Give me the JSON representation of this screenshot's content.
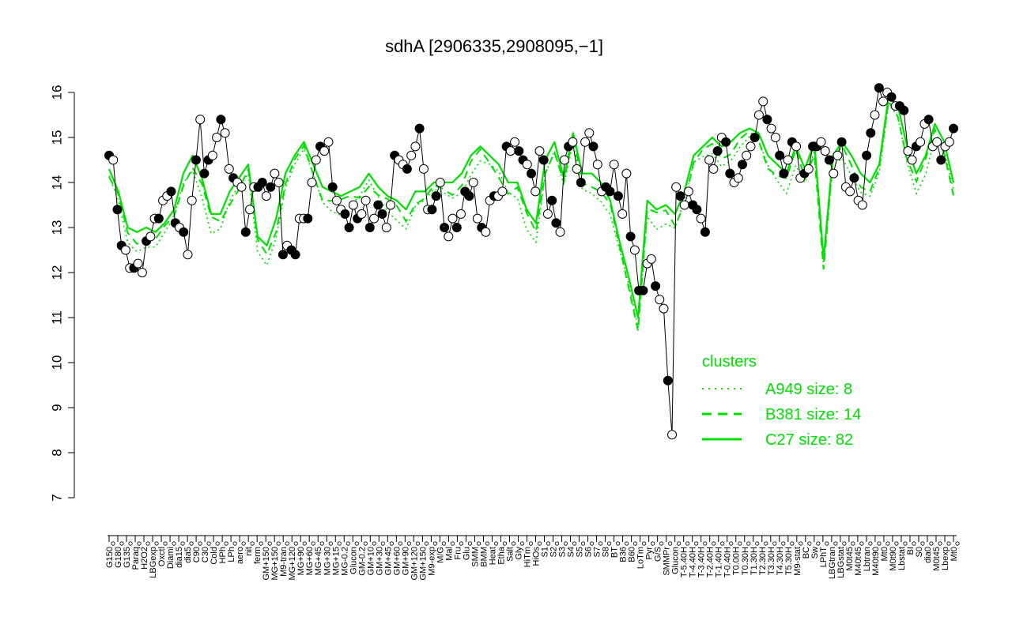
{
  "chart_data": {
    "type": "line",
    "title": "sdhA [2906335,2908095,−1]",
    "xlabel": "",
    "ylabel": "",
    "ylim": [
      7,
      16
    ],
    "yticks": [
      7,
      8,
      9,
      10,
      11,
      12,
      13,
      14,
      15,
      16
    ],
    "grid": false,
    "legend_position": "right",
    "legend": {
      "title": "clusters",
      "entries": [
        {
          "label": "A949 size: 8",
          "style": "dotted",
          "color": "#00e000"
        },
        {
          "label": "B381 size: 14",
          "style": "dashed",
          "color": "#00e000"
        },
        {
          "label": "C27 size: 82",
          "style": "solid",
          "color": "#00e000"
        }
      ]
    },
    "series_colors": {
      "cluster": "#00e000",
      "points": "#000000"
    },
    "x_tick_labels": [
      "G150",
      "G180",
      "G135",
      "Paraq",
      "H2O2",
      "LBGexp",
      "Oxctl",
      "Diami",
      "dia15",
      "dia5",
      "C90",
      "C30",
      "Cold",
      "HPh",
      "LPh",
      "aero",
      "nit",
      "ferm",
      "GM+150",
      "MG+150",
      "M9-tran",
      "MG+120",
      "MG+90",
      "MG+60",
      "MG+45",
      "MG+30",
      "MG+15",
      "MG-0.2",
      "Glucon",
      "GM-0.2",
      "GM+10",
      "GM+30",
      "GM+45",
      "GM+60",
      "GM+90",
      "GM+120",
      "GM+150",
      "M9-exp",
      "M/G",
      "Mal",
      "Fru",
      "Glu",
      "SMM",
      "BMM",
      "Heat",
      "Etha",
      "Salt",
      "Gly",
      "HiTm",
      "HiOs",
      "S1",
      "S2",
      "S3",
      "S4",
      "S5",
      "S6",
      "S7",
      "S8",
      "BT",
      "B36",
      "B60",
      "LoTm",
      "Pyr",
      "G/S",
      "SMMPr",
      "Glucon",
      "T-5.40H",
      "T-4.40H",
      "T-3.40H",
      "T-2.40H",
      "T-1.40H",
      "T-0.40H",
      "T0.00H",
      "T0.30H",
      "T1.30H",
      "T2.30H",
      "T3.30H",
      "T4.30H",
      "T5.30H",
      "M9-stat",
      "BC",
      "Sw",
      "LPhT",
      "LBGtran",
      "LBGstat",
      "M0t45",
      "M40t45",
      "Lbtran",
      "M40t90",
      "Mt0",
      "M0t90",
      "Lbstat",
      "BI",
      "S0",
      "dia0",
      "M0t45",
      "Lbexp",
      "Mt0"
    ],
    "point_values": [
      14.6,
      14.5,
      13.4,
      12.6,
      12.5,
      12.1,
      12.1,
      12.2,
      12.0,
      12.7,
      12.8,
      13.2,
      13.2,
      13.6,
      13.7,
      13.8,
      13.1,
      13.0,
      12.9,
      12.4,
      13.6,
      14.5,
      15.4,
      14.2,
      14.5,
      14.6,
      15.0,
      15.4,
      15.1,
      14.3,
      14.1,
      14.0,
      13.9,
      12.9,
      13.4,
      13.9,
      13.9,
      14.0,
      13.7,
      13.9,
      14.2,
      14.0,
      12.4,
      12.6,
      12.5,
      12.4,
      13.2,
      13.2,
      13.2,
      14.0,
      14.5,
      14.8,
      14.7,
      14.9,
      13.9,
      13.6,
      13.4,
      13.3,
      13.0,
      13.5,
      13.2,
      13.3,
      13.6,
      13.0,
      13.2,
      13.5,
      13.3,
      13.0,
      13.5,
      14.6,
      14.5,
      14.4,
      14.3,
      14.6,
      14.8,
      15.2,
      14.3,
      13.4,
      13.4,
      13.7,
      14.0,
      13.0,
      12.8,
      13.2,
      13.0,
      13.3,
      13.8,
      13.7,
      14.0,
      13.2,
      13.0,
      12.9,
      13.6,
      13.7,
      13.7,
      13.8,
      14.8,
      14.7,
      14.9,
      14.7,
      14.5,
      14.4,
      14.2,
      13.8,
      14.7,
      14.5,
      13.3,
      13.6,
      13.1,
      12.9,
      14.5,
      14.8,
      14.9,
      14.3,
      14.0,
      14.9,
      15.1,
      14.8,
      14.4,
      13.8,
      13.9,
      13.8,
      14.4,
      13.7,
      13.3,
      14.2,
      12.8,
      12.5,
      11.6,
      11.6,
      12.2,
      12.3,
      11.7,
      11.4,
      11.2,
      9.6,
      8.4,
      13.9,
      13.7,
      13.5,
      13.8,
      13.5,
      13.4,
      13.2,
      12.9,
      14.5,
      14.3,
      14.7,
      15.0,
      14.9,
      14.2,
      14.0,
      14.1,
      14.4,
      14.6,
      14.8,
      15.0,
      15.5,
      15.8,
      15.4,
      15.2,
      15.0,
      14.6,
      14.2,
      14.5,
      14.9,
      14.8,
      14.1,
      14.2,
      14.3,
      14.8,
      14.8,
      14.9,
      14.7,
      14.5,
      14.2,
      14.6,
      14.9,
      13.9,
      13.8,
      14.1,
      13.6,
      13.5,
      14.6,
      15.1,
      15.5,
      16.1,
      15.8,
      16.0,
      15.9,
      15.7,
      15.7,
      15.6,
      14.7,
      14.5,
      14.8,
      14.9,
      15.3,
      15.4,
      14.8,
      14.9,
      14.5,
      14.8,
      14.9,
      15.2
    ],
    "c27_values": [
      14.3,
      13.8,
      13.0,
      12.9,
      13.0,
      12.9,
      13.1,
      13.4,
      14.2,
      14.6,
      14.1,
      13.3,
      13.3,
      13.8,
      14.1,
      14.4,
      12.8,
      12.6,
      13.2,
      14.2,
      14.6,
      14.9,
      14.4,
      13.9,
      13.8,
      13.7,
      13.8,
      13.9,
      14.2,
      13.9,
      13.7,
      13.6,
      13.4,
      13.8,
      13.8,
      14.0,
      14.0,
      14.0,
      14.2,
      14.6,
      14.8,
      14.6,
      14.4,
      14.0,
      14.0,
      13.4,
      13.1,
      14.5,
      14.9,
      14.1,
      15.1,
      14.2,
      14.2,
      14.0,
      13.6,
      12.7,
      11.9,
      11.0,
      13.6,
      13.4,
      13.5,
      13.3,
      13.8,
      14.6,
      14.8,
      15.0,
      14.8,
      14.9,
      15.1,
      15.2,
      15.1,
      14.6,
      14.4,
      14.2,
      14.8,
      14.3,
      14.9,
      12.3,
      14.6,
      14.9,
      14.6,
      14.2,
      14.0,
      14.4,
      15.9,
      15.7,
      14.8,
      14.2,
      14.6,
      15.3,
      14.9,
      14.0
    ]
  }
}
